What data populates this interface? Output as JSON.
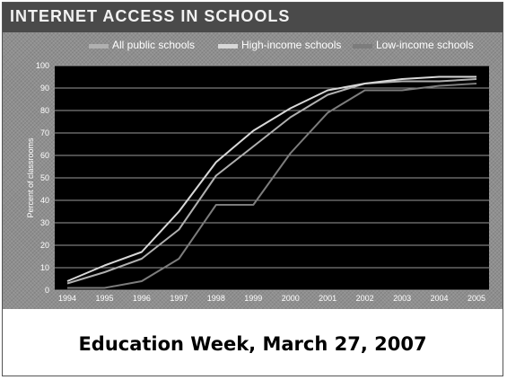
{
  "title": "INTERNET ACCESS IN SCHOOLS",
  "caption": "Education Week, March 27, 2007",
  "chart_data": {
    "type": "line",
    "x": [
      "1994",
      "1995",
      "1996",
      "1997",
      "1998",
      "1999",
      "2000",
      "2001",
      "2002",
      "2003",
      "2004",
      "2005"
    ],
    "ylabel": "Percent of classrooms",
    "ylim": [
      0,
      100
    ],
    "yticks": [
      0,
      10,
      20,
      30,
      40,
      50,
      60,
      70,
      80,
      90,
      100
    ],
    "grid": true,
    "legend_position": "top",
    "series": [
      {
        "name": "All public schools",
        "color": "#b0b0b0",
        "values": [
          3,
          8,
          14,
          27,
          51,
          64,
          77,
          87,
          92,
          93,
          93,
          94
        ]
      },
      {
        "name": "High-income schools",
        "color": "#d8d8d8",
        "values": [
          4,
          11,
          17,
          35,
          57,
          71,
          81,
          89,
          92,
          94,
          95,
          95
        ]
      },
      {
        "name": "Low-income schools",
        "color": "#7c7c7c",
        "values": [
          1,
          1,
          4,
          14,
          38,
          38,
          61,
          79,
          89,
          89,
          91,
          92
        ]
      }
    ]
  }
}
